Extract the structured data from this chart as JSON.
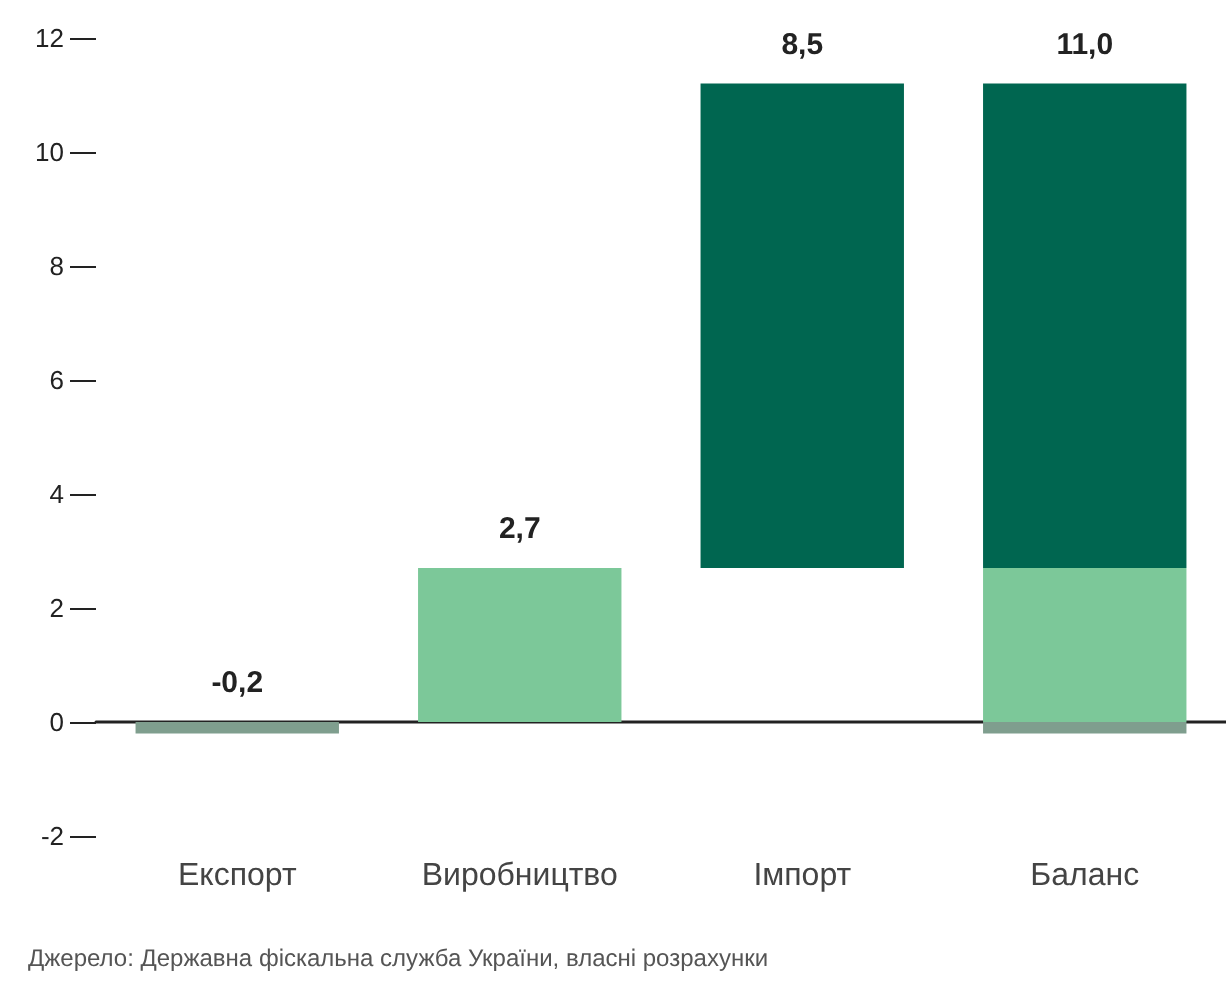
{
  "chart_data": {
    "type": "bar",
    "categories": [
      "Експорт",
      "Виробництво",
      "Імпорт",
      "Баланс"
    ],
    "series": [
      {
        "color": "#7f9e8e",
        "values": [
          -0.2,
          null,
          null,
          -0.2
        ],
        "value_labels": [
          "-0,2",
          null,
          null,
          null
        ]
      },
      {
        "color": "#7cc899",
        "values": [
          null,
          2.7,
          null,
          2.7
        ],
        "value_labels": [
          null,
          "2,7",
          null,
          null
        ]
      },
      {
        "color": "#006650",
        "values": [
          null,
          null,
          8.5,
          8.5
        ],
        "base": [
          null,
          null,
          2.7,
          null
        ],
        "value_labels": [
          null,
          null,
          "8,5",
          null
        ]
      }
    ],
    "totals": [
      null,
      null,
      null,
      "11,0"
    ],
    "ylim": [
      -2,
      12
    ],
    "yticks": [
      -2,
      0,
      2,
      4,
      6,
      8,
      10,
      12
    ],
    "stacked": true,
    "annotations": [
      "Джерело: Державна фіскальна служба України, власні розрахунки"
    ]
  }
}
